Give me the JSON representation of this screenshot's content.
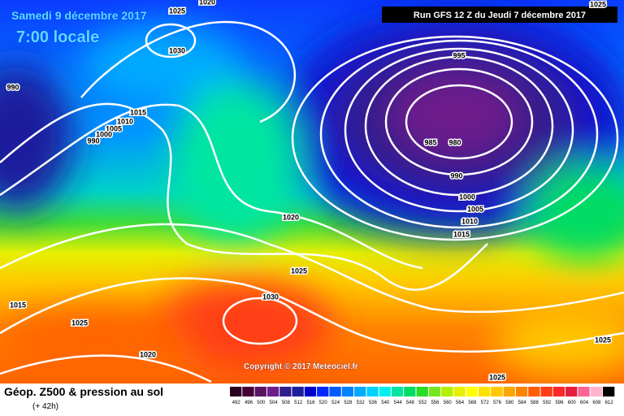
{
  "header": {
    "date": "Samedi 9 décembre 2017",
    "time": "7:00 locale",
    "run": "Run GFS 12 Z du Jeudi 7 décembre 2017"
  },
  "isobar_labels": [
    "1020",
    "1025",
    "1025",
    "1030",
    "990",
    "1015",
    "1010",
    "1005",
    "1000",
    "990",
    "995",
    "985",
    "980",
    "990",
    "1000",
    "1005",
    "1010",
    "1015",
    "1020",
    "1025",
    "1030",
    "1015",
    "1025",
    "1020",
    "1025",
    "1025"
  ],
  "copyright": "Copyright © 2017 Meteociel.fr",
  "footer": {
    "title": "Géop. Z500 & pression au sol",
    "subtitle": "(+ 42h)"
  },
  "scale": {
    "labels": [
      492,
      496,
      500,
      504,
      508,
      512,
      516,
      520,
      524,
      528,
      532,
      536,
      540,
      544,
      548,
      552,
      556,
      560,
      564,
      568,
      572,
      576,
      580,
      584,
      588,
      592,
      596,
      600,
      604,
      608,
      612
    ],
    "colors": [
      "#2a0020",
      "#460038",
      "#5a1464",
      "#6e1e8c",
      "#321e8c",
      "#1e1e9c",
      "#0000c8",
      "#0028ff",
      "#005aff",
      "#0082ff",
      "#00aaff",
      "#00d2ff",
      "#00f0f0",
      "#00e6a0",
      "#00dc64",
      "#28dc28",
      "#78e61e",
      "#b4f000",
      "#e6f000",
      "#ffff00",
      "#ffe100",
      "#ffc800",
      "#ffa500",
      "#ff8200",
      "#ff5f00",
      "#ff3c14",
      "#ff2828",
      "#e61e3c",
      "#ff6496",
      "#ffb4d2",
      "#000000"
    ]
  }
}
